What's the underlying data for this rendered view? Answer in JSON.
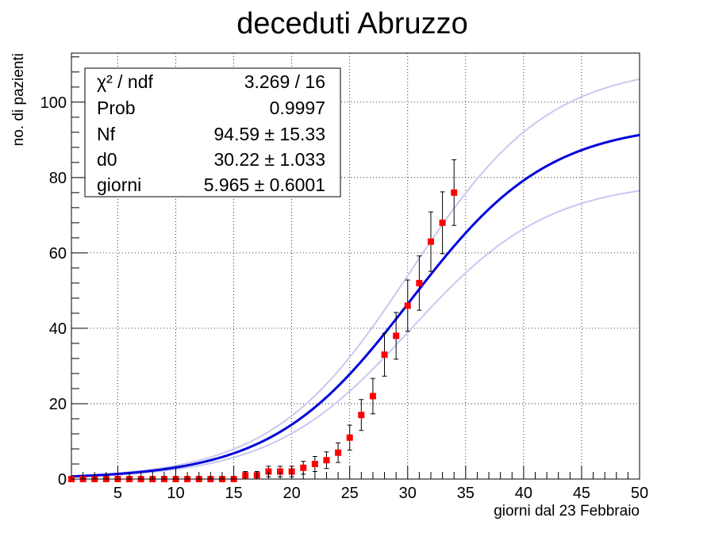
{
  "chart_data": {
    "type": "scatter",
    "title": "deceduti Abruzzo",
    "xlabel": "giorni dal 23 Febbraio",
    "ylabel": "no. di pazienti",
    "xlim": [
      1,
      50
    ],
    "ylim": [
      0,
      113
    ],
    "grid": true,
    "x_ticks": [
      "5",
      "10",
      "15",
      "20",
      "25",
      "30",
      "35",
      "40",
      "45",
      "50"
    ],
    "y_ticks": [
      "0",
      "20",
      "40",
      "60",
      "80",
      "100"
    ],
    "series": [
      {
        "kind": "points",
        "color": "#ff0000",
        "x": [
          1,
          2,
          3,
          4,
          5,
          6,
          7,
          8,
          9,
          10,
          11,
          12,
          13,
          14,
          15,
          16,
          17,
          18,
          19,
          20,
          21,
          22,
          23,
          24,
          25,
          26,
          27,
          28,
          29,
          30,
          31,
          32,
          33,
          34
        ],
        "y": [
          0,
          0,
          0,
          0,
          0,
          0,
          0,
          0,
          0,
          0,
          0,
          0,
          0,
          0,
          0,
          1,
          1,
          2,
          2,
          2,
          3,
          4,
          5,
          7,
          11,
          17,
          22,
          33,
          38,
          46,
          52,
          63,
          68,
          76
        ],
        "err": [
          0,
          0,
          0,
          0,
          0,
          0,
          0,
          0,
          0,
          0,
          0,
          0,
          0,
          0,
          0,
          1,
          1,
          1.4,
          1.4,
          1.4,
          1.7,
          2,
          2.2,
          2.6,
          3.3,
          4.1,
          4.7,
          5.7,
          6.2,
          6.8,
          7.2,
          7.9,
          8.2,
          8.7
        ]
      },
      {
        "kind": "fit",
        "color": "#0000dd",
        "model": "Nf / (1 + exp(-(x - d0) / giorni))",
        "params": {
          "Nf": 94.59,
          "d0": 30.22,
          "giorni": 5.965
        }
      },
      {
        "kind": "band-upper",
        "color": "#c8c8f0",
        "params": {
          "Nf": 109.92,
          "d0": 30.22,
          "giorni": 5.965
        }
      },
      {
        "kind": "band-lower",
        "color": "#c8c8f0",
        "params": {
          "Nf": 79.26,
          "d0": 30.22,
          "giorni": 5.965
        }
      }
    ],
    "stats_box": {
      "placement": "top-left",
      "rows": [
        {
          "label": "χ² / ndf",
          "value": "3.269 / 16"
        },
        {
          "label": "Prob",
          "value": "0.9997"
        },
        {
          "label": "Nf",
          "value": "94.59 ± 15.33"
        },
        {
          "label": "d0",
          "value": "30.22 ± 1.033"
        },
        {
          "label": "giorni",
          "value": "5.965 ± 0.6001"
        }
      ]
    }
  }
}
